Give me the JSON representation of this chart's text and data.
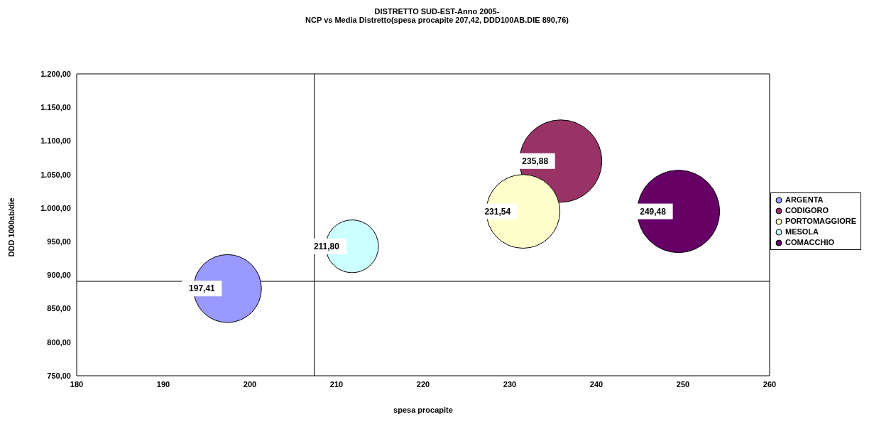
{
  "chart_data": {
    "type": "bubble",
    "title": "DISTRETTO SUD-EST-Anno 2005-",
    "subtitle": "NCP vs Media Distretto(spesa procapite 207,42, DDD100AB.DIE  890,76)",
    "xlabel": "spesa procapite",
    "ylabel": "DDD 1000ab/die",
    "xlim": [
      180,
      260
    ],
    "xticks": [
      180,
      190,
      200,
      210,
      220,
      230,
      240,
      250,
      260
    ],
    "ylim": [
      750,
      1200
    ],
    "yticks": [
      {
        "value": 750,
        "label": "750,00"
      },
      {
        "value": 800,
        "label": "800,00"
      },
      {
        "value": 850,
        "label": "850,00"
      },
      {
        "value": 900,
        "label": "900,00"
      },
      {
        "value": 950,
        "label": "950,00"
      },
      {
        "value": 1000,
        "label": "1.000,00"
      },
      {
        "value": 1050,
        "label": "1.050,00"
      },
      {
        "value": 1100,
        "label": "1.100,00"
      },
      {
        "value": 1150,
        "label": "1.150,00"
      },
      {
        "value": 1200,
        "label": "1.200,00"
      }
    ],
    "series": [
      {
        "name": "ARGENTA",
        "color": "#9999ff",
        "x": [
          197.41
        ],
        "values": [
          880
        ],
        "sizes": [
          0.68
        ]
      },
      {
        "name": "CODIGORO",
        "color": "#993366",
        "x": [
          235.88
        ],
        "values": [
          1070
        ],
        "sizes": [
          1
        ]
      },
      {
        "name": "PORTOMAGGIORE",
        "color": "#ffffcc",
        "x": [
          231.54
        ],
        "values": [
          995
        ],
        "sizes": [
          0.8
        ]
      },
      {
        "name": "MESOLA",
        "color": "#ccffff",
        "x": [
          211.8
        ],
        "values": [
          943
        ],
        "sizes": [
          0.41
        ]
      },
      {
        "name": "COMACCHIO",
        "color": "#660066",
        "x": [
          249.48
        ],
        "values": [
          995
        ],
        "sizes": [
          1
        ]
      }
    ],
    "annotations": [
      {
        "text": "197,41",
        "x": 197.41,
        "y": 880
      },
      {
        "text": "235,88",
        "x": 235.88,
        "y": 1070
      },
      {
        "text": "231,54",
        "x": 231.54,
        "y": 995
      },
      {
        "text": "211,80",
        "x": 211.8,
        "y": 943
      },
      {
        "text": "249,48",
        "x": 249.48,
        "y": 995
      }
    ],
    "ref_lines": [
      {
        "axis": "x",
        "value": 207.42
      },
      {
        "axis": "y",
        "value": 890.76
      }
    ],
    "legend": "right"
  }
}
